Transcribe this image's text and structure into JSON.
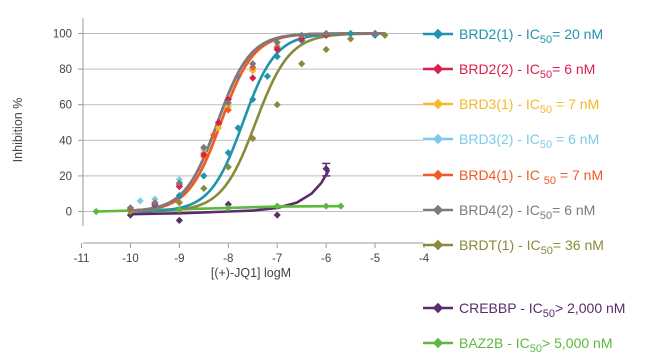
{
  "chart_data": {
    "type": "scatter",
    "xlabel": "[(+)-JQ1] logM",
    "ylabel": "Inhibition %",
    "xlim": [
      -11,
      -4
    ],
    "ylim": [
      -10,
      110
    ],
    "x_ticks": [
      "-11",
      "-10",
      "-9",
      "-8",
      "-7",
      "-6",
      "-5",
      "-4"
    ],
    "y_ticks": [
      "0",
      "20",
      "40",
      "60",
      "80",
      "100"
    ],
    "grid": "horizontal",
    "legend_position": "right",
    "series": [
      {
        "name": "BRD2(1) - IC50= 20 nM",
        "legend": {
          "prefix": "BRD2(1) - IC",
          "sub": "50",
          "suffix": "= 20 nM"
        },
        "color": "#1f94ad",
        "marker": "diamond",
        "ic50_log": -7.7,
        "hill": 1.3,
        "curve_x": [
          -10.0,
          -4.8
        ],
        "points": [
          [
            -10,
            1
          ],
          [
            -9.5,
            3
          ],
          [
            -9,
            9
          ],
          [
            -8.5,
            20
          ],
          [
            -8,
            33
          ],
          [
            -7.8,
            47
          ],
          [
            -7.5,
            63
          ],
          [
            -7.2,
            76
          ],
          [
            -7,
            87
          ],
          [
            -6.5,
            96
          ],
          [
            -6,
            99
          ],
          [
            -5.5,
            100
          ],
          [
            -5,
            99
          ]
        ]
      },
      {
        "name": "BRD2(2) - IC50= 6 nM",
        "legend": {
          "prefix": "BRD2(2) - IC",
          "sub": "50",
          "suffix": "= 6 nM"
        },
        "color": "#d91f4e",
        "marker": "diamond",
        "ic50_log": -8.22,
        "hill": 1.3,
        "curve_x": [
          -10.0,
          -4.8
        ],
        "points": [
          [
            -10,
            2
          ],
          [
            -9.5,
            4
          ],
          [
            -9,
            14
          ],
          [
            -8.5,
            32
          ],
          [
            -8.2,
            50
          ],
          [
            -8,
            63
          ],
          [
            -7.5,
            75
          ],
          [
            -7,
            91
          ],
          [
            -6.5,
            97
          ],
          [
            -6,
            99
          ],
          [
            -5,
            100
          ]
        ]
      },
      {
        "name": "BRD3(1) - IC50 = 7 nM",
        "legend": {
          "prefix": "BRD3(1) - IC",
          "sub": "50",
          "suffix": " = 7 nM"
        },
        "color": "#f5b925",
        "marker": "diamond",
        "ic50_log": -8.15,
        "hill": 1.3,
        "curve_x": [
          -10.0,
          -4.8
        ],
        "points": [
          [
            -10,
            1
          ],
          [
            -9.5,
            5
          ],
          [
            -9,
            15
          ],
          [
            -8.5,
            33
          ],
          [
            -8.2,
            47
          ],
          [
            -8,
            59
          ],
          [
            -7.5,
            79
          ],
          [
            -7,
            92
          ],
          [
            -6.5,
            97
          ],
          [
            -6,
            99
          ],
          [
            -5,
            100
          ]
        ]
      },
      {
        "name": "BRD3(2) - IC50 = 6 nM",
        "legend": {
          "prefix": "BRD3(2) - IC",
          "sub": "50",
          "suffix": " = 6 nM"
        },
        "color": "#7dcbe8",
        "marker": "diamond",
        "ic50_log": -8.22,
        "hill": 1.3,
        "curve_x": [
          -10.0,
          -4.8
        ],
        "points": [
          [
            -10,
            2
          ],
          [
            -9.8,
            6
          ],
          [
            -9.5,
            7
          ],
          [
            -9,
            18
          ],
          [
            -8.5,
            35
          ],
          [
            -8,
            63
          ],
          [
            -7.5,
            80
          ],
          [
            -7,
            93
          ],
          [
            -6.5,
            98
          ],
          [
            -6,
            100
          ],
          [
            -5,
            100
          ]
        ]
      },
      {
        "name": "BRD4(1) - IC 50 = 7 nM",
        "legend": {
          "prefix": "BRD4(1) - IC ",
          "sub": "50",
          "suffix": " = 7 nM"
        },
        "color": "#f15a24",
        "marker": "diamond",
        "ic50_log": -8.15,
        "hill": 1.3,
        "curve_x": [
          -10.0,
          -4.8
        ],
        "points": [
          [
            -10,
            1
          ],
          [
            -9.5,
            4
          ],
          [
            -9,
            15
          ],
          [
            -8.5,
            31
          ],
          [
            -8.3,
            43
          ],
          [
            -8,
            57
          ],
          [
            -7.5,
            81
          ],
          [
            -7,
            92
          ],
          [
            -6.5,
            97
          ],
          [
            -6,
            99
          ],
          [
            -5,
            100
          ]
        ]
      },
      {
        "name": "BRD4(2) - IC50= 6 nM",
        "legend": {
          "prefix": "BRD4(2) - IC",
          "sub": "50",
          "suffix": "= 6 nM"
        },
        "color": "#7b7b7b",
        "marker": "diamond",
        "ic50_log": -8.22,
        "hill": 1.3,
        "curve_x": [
          -10.0,
          -4.8
        ],
        "points": [
          [
            -10,
            2
          ],
          [
            -9.5,
            5
          ],
          [
            -9,
            16
          ],
          [
            -8.5,
            36
          ],
          [
            -8,
            61
          ],
          [
            -7.8,
            76
          ],
          [
            -7.5,
            83
          ],
          [
            -7,
            95
          ],
          [
            -6.5,
            99
          ],
          [
            -6,
            100
          ],
          [
            -5,
            100
          ]
        ]
      },
      {
        "name": "BRDT(1) - IC50= 36 nM",
        "legend": {
          "prefix": "BRDT(1) - IC",
          "sub": "50",
          "suffix": "= 36 nM"
        },
        "color": "#8a8a3c",
        "marker": "diamond",
        "ic50_log": -7.44,
        "hill": 1.25,
        "curve_x": [
          -10.0,
          -4.8
        ],
        "points": [
          [
            -10,
            1
          ],
          [
            -9.5,
            2
          ],
          [
            -9,
            5
          ],
          [
            -8.5,
            13
          ],
          [
            -8,
            25
          ],
          [
            -7.5,
            41
          ],
          [
            -7,
            60
          ],
          [
            -6.5,
            83
          ],
          [
            -6,
            91
          ],
          [
            -5.5,
            97
          ],
          [
            -5,
            100
          ],
          [
            -4.8,
            99
          ]
        ]
      },
      {
        "name": "CREBBP - IC50> 2,000 nM",
        "legend": {
          "prefix": "CREBBP - IC",
          "sub": "50",
          "suffix": "> 2,000 nM"
        },
        "color": "#5c2b6b",
        "marker": "diamond",
        "curve": [
          [
            -10.0,
            -1.5
          ],
          [
            -9.5,
            -1.2
          ],
          [
            -9.0,
            -1.0
          ],
          [
            -8.5,
            -0.5
          ],
          [
            -8.0,
            0.0
          ],
          [
            -7.5,
            0.5
          ],
          [
            -7.0,
            2.0
          ],
          [
            -6.6,
            5.0
          ],
          [
            -6.3,
            10.0
          ],
          [
            -6.1,
            16.0
          ],
          [
            -5.95,
            23.0
          ]
        ],
        "points": [
          [
            -10,
            -2
          ],
          [
            -9,
            -5
          ],
          [
            -8,
            4
          ],
          [
            -7,
            -2
          ],
          [
            -6,
            24
          ]
        ],
        "error_bar": {
          "x": -6,
          "low": 20,
          "high": 27
        }
      },
      {
        "name": "BAZ2B - IC50> 5,000 nM",
        "legend": {
          "prefix": "BAZ2B - IC",
          "sub": "50",
          "suffix": "> 5,000 nM"
        },
        "color": "#5cb93d",
        "marker": "diamond",
        "curve": [
          [
            -10.7,
            0.0
          ],
          [
            -10.0,
            0.5
          ],
          [
            -9.0,
            1.2
          ],
          [
            -8.0,
            2.0
          ],
          [
            -7.0,
            2.8
          ],
          [
            -6.0,
            3.0
          ],
          [
            -5.7,
            3.0
          ]
        ],
        "points": [
          [
            -10.7,
            0
          ],
          [
            -10,
            0
          ],
          [
            -9,
            1
          ],
          [
            -8,
            2
          ],
          [
            -7,
            3
          ],
          [
            -6,
            3
          ],
          [
            -5.7,
            3
          ]
        ]
      }
    ]
  }
}
